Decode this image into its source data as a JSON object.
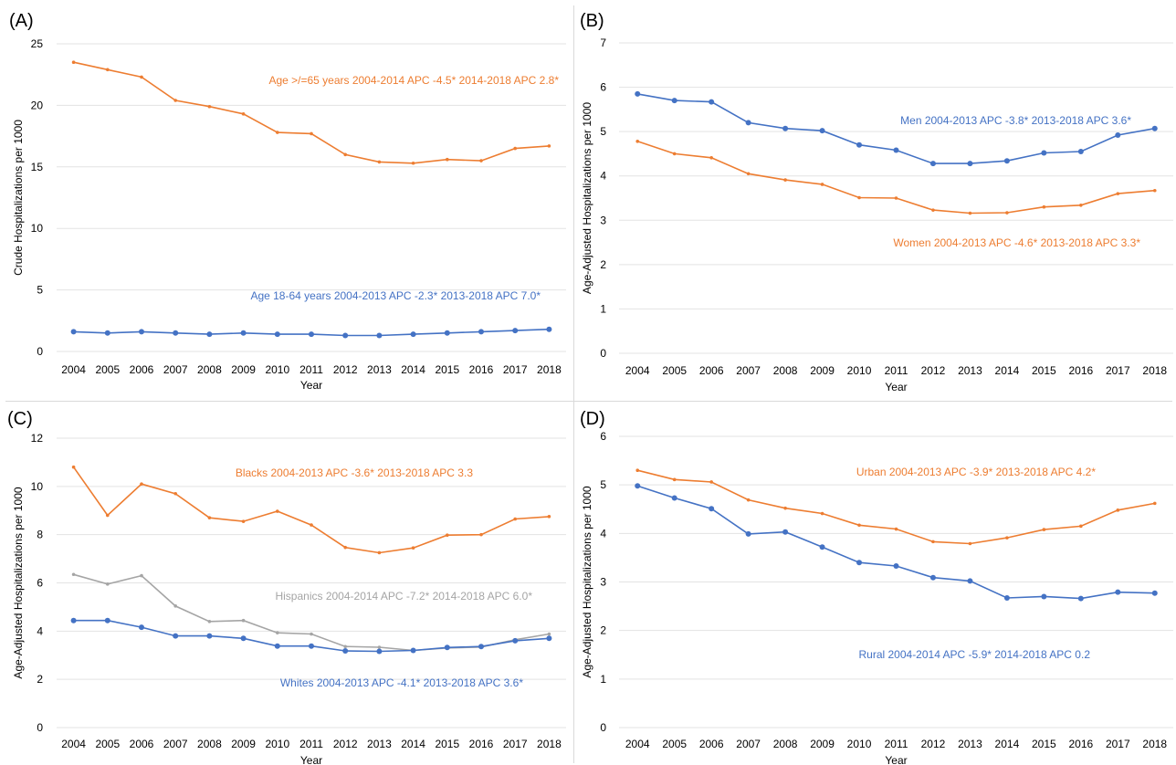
{
  "colors": {
    "orange": "#ED7D31",
    "blue": "#4472C4",
    "gray": "#A5A5A5"
  },
  "chart_data": [
    {
      "id": "A",
      "panel_label": "(A)",
      "type": "line",
      "xlabel": "Year",
      "ylabel": "Crude Hospitalizations per 1000",
      "ylim": [
        0,
        25
      ],
      "yticks": [
        0,
        5,
        10,
        15,
        20,
        25
      ],
      "grid": true,
      "x": [
        2004,
        2005,
        2006,
        2007,
        2008,
        2009,
        2010,
        2011,
        2012,
        2013,
        2014,
        2015,
        2016,
        2017,
        2018
      ],
      "series": [
        {
          "color": "orange",
          "marker": "small",
          "annotation": "Age >/=65 years 2004-2014 APC -4.5*  2014-2018 APC 2.8*",
          "values": [
            23.5,
            22.9,
            22.3,
            20.4,
            19.9,
            19.3,
            17.8,
            17.7,
            16.0,
            15.4,
            15.3,
            15.6,
            15.5,
            16.5,
            16.7
          ]
        },
        {
          "color": "blue",
          "marker": "large",
          "annotation": "Age 18-64 years 2004-2013 APC -2.3* 2013-2018 APC 7.0*",
          "values": [
            1.6,
            1.5,
            1.6,
            1.5,
            1.4,
            1.5,
            1.4,
            1.4,
            1.3,
            1.3,
            1.4,
            1.5,
            1.6,
            1.7,
            1.8
          ]
        }
      ]
    },
    {
      "id": "B",
      "panel_label": "(B)",
      "type": "line",
      "xlabel": "Year",
      "ylabel": "Age-Adjusted Hospitalizations per 1000",
      "ylim": [
        0,
        7
      ],
      "yticks": [
        0,
        1,
        2,
        3,
        4,
        5,
        6,
        7
      ],
      "grid": true,
      "x": [
        2004,
        2005,
        2006,
        2007,
        2008,
        2009,
        2010,
        2011,
        2012,
        2013,
        2014,
        2015,
        2016,
        2017,
        2018
      ],
      "series": [
        {
          "color": "blue",
          "marker": "large",
          "annotation": "Men 2004-2013 APC -3.8* 2013-2018 APC 3.6*",
          "values": [
            5.85,
            5.7,
            5.67,
            5.2,
            5.07,
            5.02,
            4.7,
            4.58,
            4.28,
            4.28,
            4.34,
            4.52,
            4.55,
            4.92,
            5.07
          ]
        },
        {
          "color": "orange",
          "marker": "small",
          "annotation": "Women 2004-2013 APC -4.6*  2013-2018 APC 3.3*",
          "values": [
            4.78,
            4.5,
            4.41,
            4.05,
            3.91,
            3.81,
            3.51,
            3.5,
            3.23,
            3.16,
            3.17,
            3.3,
            3.34,
            3.6,
            3.67
          ]
        }
      ]
    },
    {
      "id": "C",
      "panel_label": "(C)",
      "type": "line",
      "xlabel": "Year",
      "ylabel": "Age-Adjusted Hospitalizations per 1000",
      "ylim": [
        0,
        12
      ],
      "yticks": [
        0,
        2,
        4,
        6,
        8,
        10,
        12
      ],
      "grid": true,
      "x": [
        2004,
        2005,
        2006,
        2007,
        2008,
        2009,
        2010,
        2011,
        2012,
        2013,
        2014,
        2015,
        2016,
        2017,
        2018
      ],
      "series": [
        {
          "color": "orange",
          "marker": "small",
          "annotation": "Blacks 2004-2013 APC -3.6* 2013-2018 APC 3.3",
          "values": [
            10.8,
            8.8,
            10.1,
            9.7,
            8.7,
            8.55,
            8.97,
            8.4,
            7.47,
            7.25,
            7.45,
            7.98,
            8.0,
            8.65,
            8.75
          ]
        },
        {
          "color": "gray",
          "marker": "small",
          "annotation": "Hispanics 2004-2014 APC -7.2* 2014-2018 APC 6.0*",
          "values": [
            6.35,
            5.95,
            6.3,
            5.04,
            4.4,
            4.44,
            3.93,
            3.88,
            3.36,
            3.33,
            3.2,
            3.3,
            3.34,
            3.64,
            3.88
          ]
        },
        {
          "color": "blue",
          "marker": "large",
          "annotation": "Whites 2004-2013 APC -4.1* 2013-2018 APC 3.6*",
          "values": [
            4.44,
            4.44,
            4.16,
            3.8,
            3.8,
            3.7,
            3.38,
            3.38,
            3.18,
            3.16,
            3.2,
            3.32,
            3.36,
            3.6,
            3.7
          ]
        }
      ]
    },
    {
      "id": "D",
      "panel_label": "(D)",
      "type": "line",
      "xlabel": "Year",
      "ylabel": "Age-Adjusted Hospitalizations per 1000",
      "ylim": [
        0,
        6
      ],
      "yticks": [
        0,
        1,
        2,
        3,
        4,
        5,
        6
      ],
      "grid": true,
      "x": [
        2004,
        2005,
        2006,
        2007,
        2008,
        2009,
        2010,
        2011,
        2012,
        2013,
        2014,
        2015,
        2016,
        2017,
        2018
      ],
      "series": [
        {
          "color": "orange",
          "marker": "small",
          "annotation": "Urban 2004-2013 APC -3.9* 2013-2018 APC 4.2*",
          "values": [
            5.3,
            5.11,
            5.06,
            4.69,
            4.52,
            4.41,
            4.17,
            4.09,
            3.83,
            3.79,
            3.91,
            4.08,
            4.15,
            4.48,
            4.62
          ]
        },
        {
          "color": "blue",
          "marker": "large",
          "annotation": "Rural 2004-2014 APC -5.9* 2014-2018 APC 0.2",
          "values": [
            4.98,
            4.73,
            4.51,
            3.99,
            4.03,
            3.72,
            3.4,
            3.33,
            3.09,
            3.02,
            2.67,
            2.7,
            2.66,
            2.79,
            2.77
          ]
        }
      ]
    }
  ]
}
